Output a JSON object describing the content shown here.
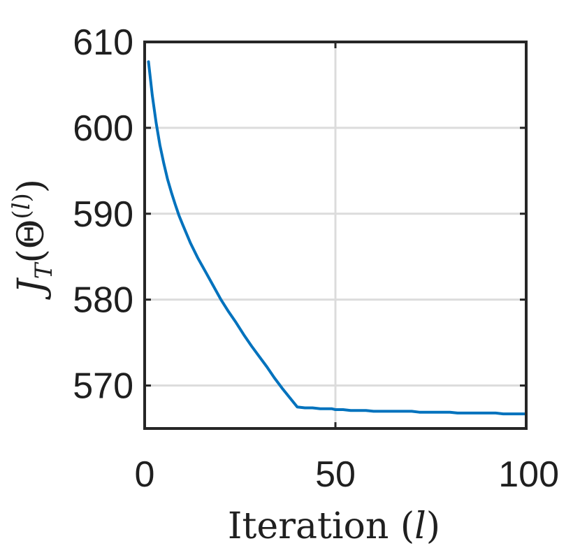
{
  "chart_data": {
    "type": "line",
    "title": "",
    "xlabel": "Iteration (l)",
    "ylabel": "J_T(Θ^(l))",
    "xlim": [
      0,
      100
    ],
    "ylim": [
      565,
      610
    ],
    "xticks": [
      0,
      50,
      100
    ],
    "yticks": [
      570,
      580,
      590,
      600,
      610
    ],
    "xtick_labels": [
      "0",
      "50",
      "100"
    ],
    "ytick_labels": [
      "570",
      "580",
      "590",
      "600",
      "610"
    ],
    "grid": true,
    "legend": "none",
    "colors": {
      "line": "#0072BD",
      "axes": "#262626",
      "grid": "#dcdcdc"
    },
    "series": [
      {
        "x": [
          1,
          2,
          3,
          4,
          5,
          6,
          7,
          8,
          9,
          10,
          12,
          14,
          16,
          18,
          20,
          22,
          24,
          26,
          28,
          30,
          32,
          34,
          36,
          38,
          40,
          42,
          44,
          46,
          48,
          49,
          50,
          52,
          54,
          56,
          58,
          60,
          62,
          64,
          66,
          68,
          70,
          72,
          74,
          76,
          78,
          80,
          82,
          84,
          86,
          88,
          90,
          92,
          94,
          96,
          98,
          100
        ],
        "values": [
          607.7,
          603.8,
          600.6,
          598.0,
          595.9,
          594.0,
          592.5,
          591.1,
          589.8,
          588.7,
          586.6,
          584.8,
          583.2,
          581.6,
          580.0,
          578.6,
          577.3,
          575.9,
          574.6,
          573.4,
          572.2,
          570.9,
          569.7,
          568.6,
          567.5,
          567.4,
          567.4,
          567.3,
          567.3,
          567.3,
          567.2,
          567.2,
          567.1,
          567.1,
          567.1,
          567.0,
          567.0,
          567.0,
          567.0,
          567.0,
          567.0,
          566.9,
          566.9,
          566.9,
          566.9,
          566.9,
          566.8,
          566.8,
          566.8,
          566.8,
          566.8,
          566.8,
          566.7,
          566.7,
          566.7,
          566.7
        ]
      }
    ]
  }
}
